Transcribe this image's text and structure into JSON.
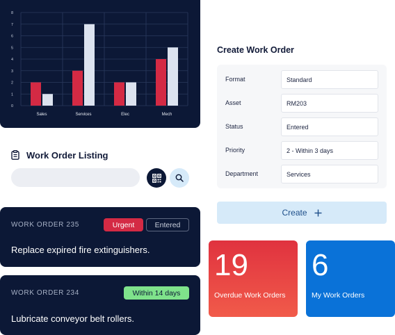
{
  "chart_data": {
    "type": "bar",
    "categories": [
      "Sales",
      "Services",
      "Elec",
      "Mech"
    ],
    "series": [
      {
        "color": "#d42a44",
        "values": [
          2,
          3,
          2,
          4
        ]
      },
      {
        "color": "#dce3ef",
        "values": [
          1,
          7,
          2,
          5
        ]
      }
    ],
    "yticks": [
      "0",
      "1",
      "2",
      "3",
      "4",
      "5",
      "6",
      "7",
      "8"
    ],
    "ylim": [
      0,
      8
    ],
    "grid": true
  },
  "listing": {
    "title": "Work Order Listing",
    "search_placeholder": "",
    "icons": {
      "clipboard": "clipboard-icon",
      "qr": "qr-code-icon",
      "search": "search-icon"
    }
  },
  "work_orders": [
    {
      "number": "WORK ORDER 235",
      "tags": [
        "Urgent",
        "Entered"
      ],
      "description": "Replace expired fire extinguishers."
    },
    {
      "number": "WORK ORDER 234",
      "tags": [
        "Within 14 days"
      ],
      "description": "Lubricate conveyor belt rollers."
    }
  ],
  "create_form": {
    "title": "Create Work Order",
    "fields": [
      {
        "label": "Format",
        "value": "Standard"
      },
      {
        "label": "Asset",
        "value": "RM203"
      },
      {
        "label": "Status",
        "value": "Entered"
      },
      {
        "label": "Priority",
        "value": "2 - Within 3 days"
      },
      {
        "label": "Department",
        "value": "Services"
      }
    ],
    "submit_label": "Create",
    "submit_icon": "plus-icon"
  },
  "stats": [
    {
      "value": "19",
      "label": "Overdue Work Orders",
      "color": "#e0323f"
    },
    {
      "value": "6",
      "label": "My Work Orders",
      "color": "#0a72d8"
    }
  ]
}
